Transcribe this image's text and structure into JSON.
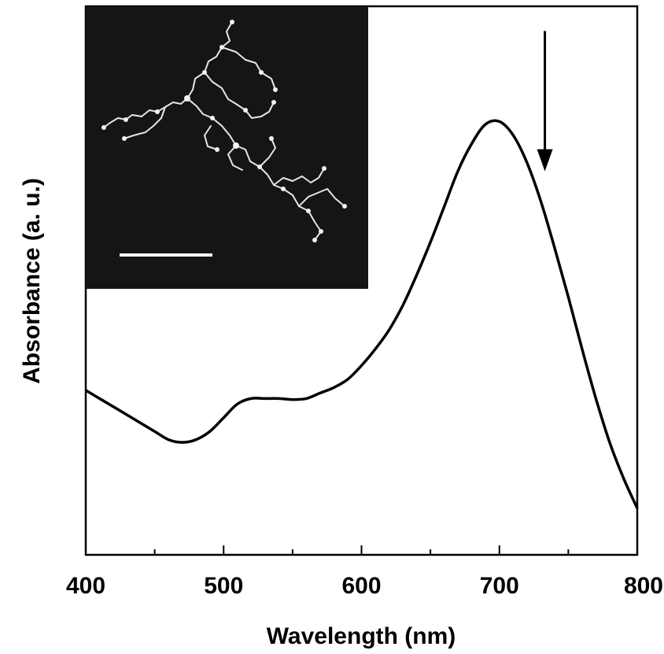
{
  "chart_data": {
    "type": "line",
    "xlabel": "Wavelength (nm)",
    "ylabel": "Absorbance (a. u.)",
    "xlim": [
      400,
      800
    ],
    "x_ticks": [
      400,
      500,
      600,
      700,
      800
    ],
    "x_tick_labels": [
      "400",
      "500",
      "600",
      "700",
      "800"
    ],
    "y_ticks_shown": false,
    "grid": false,
    "legend": "none",
    "ylim": [
      0,
      1
    ],
    "series": [
      {
        "x": [
          400,
          410,
          420,
          430,
          440,
          450,
          460,
          470,
          480,
          490,
          500,
          510,
          520,
          530,
          540,
          550,
          560,
          570,
          580,
          590,
          600,
          610,
          620,
          630,
          640,
          650,
          660,
          670,
          680,
          690,
          700,
          710,
          720,
          730,
          740,
          750,
          760,
          770,
          780,
          790,
          800
        ],
        "y": [
          0.3,
          0.285,
          0.27,
          0.255,
          0.24,
          0.225,
          0.21,
          0.205,
          0.21,
          0.225,
          0.25,
          0.275,
          0.285,
          0.285,
          0.285,
          0.283,
          0.285,
          0.295,
          0.305,
          0.32,
          0.345,
          0.375,
          0.41,
          0.455,
          0.51,
          0.57,
          0.635,
          0.7,
          0.75,
          0.785,
          0.79,
          0.765,
          0.715,
          0.645,
          0.56,
          0.47,
          0.375,
          0.285,
          0.205,
          0.14,
          0.085
        ]
      }
    ],
    "annotation": {
      "type": "down-arrow",
      "x": 733,
      "y_top": 0.955,
      "y_bottom": 0.705
    },
    "inset": {
      "type": "micrograph",
      "description_scale_bar": true
    }
  }
}
